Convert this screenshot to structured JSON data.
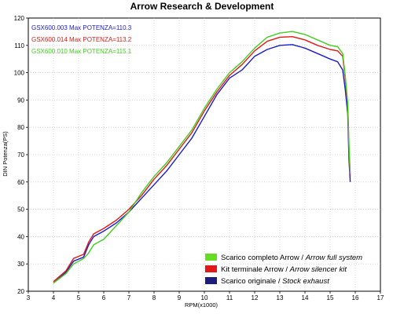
{
  "chart_data": {
    "type": "line",
    "title": "Arrow Research & Development",
    "xlabel": "RPM(x1000)",
    "ylabel": "DIN Potenza(PS)",
    "xlim": [
      3,
      17
    ],
    "ylim": [
      20,
      120
    ],
    "x_ticks": [
      "3",
      "4",
      "5",
      "6",
      "7",
      "8",
      "9",
      "10",
      "11",
      "12",
      "13",
      "14",
      "15",
      "16",
      "17"
    ],
    "y_ticks": [
      "20",
      "30",
      "40",
      "50",
      "60",
      "70",
      "80",
      "90",
      "100",
      "110",
      "120"
    ],
    "grid": true,
    "max_labels": [
      {
        "text": "GSX600.003  Max POTENZA=110.3",
        "color": "#1c1cc8"
      },
      {
        "text": "GSX600.014  Max POTENZA=113.2",
        "color": "#e01818"
      },
      {
        "text": "GSX600.010  Max POTENZA=115.1",
        "color": "#44cc22"
      }
    ],
    "legend": [
      {
        "text_normal": "Scarico completo Arrow / ",
        "text_italic": "Arrow full system",
        "color": "#66dd22"
      },
      {
        "text_normal": "Kit terminale Arrow / ",
        "text_italic": "Arrow silencer kit",
        "color": "#e01818"
      },
      {
        "text_normal": "Scarico originale / ",
        "text_italic": "Stock exhaust",
        "color": "#1c1c7a"
      }
    ],
    "legend_position": "bottom-right",
    "series": [
      {
        "color": "#1c1cc8",
        "x": [
          4.0,
          4.5,
          4.8,
          5.2,
          5.4,
          5.6,
          6.0,
          6.5,
          7.0,
          7.5,
          8.0,
          8.5,
          9.0,
          9.5,
          10.0,
          10.5,
          11.0,
          11.5,
          12.0,
          12.5,
          13.0,
          13.5,
          14.0,
          14.5,
          15.0,
          15.3,
          15.5,
          15.6,
          15.7,
          15.75,
          15.8
        ],
        "y": [
          23,
          27,
          31,
          32.5,
          37,
          40,
          42,
          45,
          49,
          54,
          59,
          64,
          70,
          76,
          84,
          92,
          98,
          101,
          106,
          108.5,
          110,
          110.3,
          109,
          107,
          105,
          104,
          101,
          94,
          85,
          68,
          60
        ]
      },
      {
        "color": "#e01818",
        "x": [
          4.0,
          4.5,
          4.8,
          5.2,
          5.4,
          5.6,
          6.0,
          6.5,
          7.0,
          7.5,
          8.0,
          8.5,
          9.0,
          9.5,
          10.0,
          10.5,
          11.0,
          11.5,
          12.0,
          12.5,
          13.0,
          13.5,
          14.0,
          14.5,
          15.0,
          15.3,
          15.5,
          15.6,
          15.7,
          15.75,
          15.8
        ],
        "y": [
          23.5,
          27.5,
          32,
          33.5,
          38,
          41,
          43,
          46,
          50,
          55,
          61,
          66,
          72,
          78,
          86,
          93,
          99,
          103,
          108,
          111.5,
          113,
          113.2,
          112,
          110,
          108.5,
          108,
          106,
          98,
          88,
          72,
          62
        ]
      },
      {
        "color": "#44cc22",
        "x": [
          4.0,
          4.5,
          4.8,
          5.2,
          5.4,
          5.6,
          6.0,
          6.5,
          7.0,
          7.5,
          8.0,
          8.5,
          9.0,
          9.5,
          10.0,
          10.5,
          11.0,
          11.5,
          12.0,
          12.5,
          13.0,
          13.5,
          14.0,
          14.5,
          15.0,
          15.3,
          15.5,
          15.6,
          15.7,
          15.75,
          15.8
        ],
        "y": [
          23,
          26.5,
          30,
          32,
          34,
          37,
          39,
          44,
          49,
          56,
          62,
          67,
          73,
          79,
          87,
          94,
          100,
          104,
          109,
          113,
          114.5,
          115.1,
          114,
          112,
          110,
          109.5,
          107,
          99,
          89,
          74,
          63
        ]
      }
    ]
  }
}
